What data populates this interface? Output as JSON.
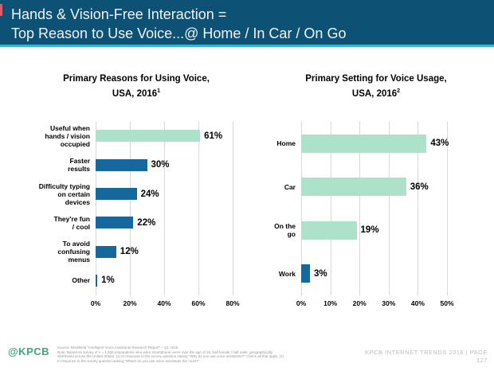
{
  "header": {
    "title_line1": "Hands & Vision-Free Interaction =",
    "title_line2": "Top Reason to Use Voice...@ Home / In Car / On Go"
  },
  "colors": {
    "header_bg": "#0d5174",
    "header_underline": "#36b6d3",
    "mint_bar": "#abe2c9",
    "blue_bar": "#16689c",
    "logo_green": "#3fa87a",
    "gridline": "#d9d9d9"
  },
  "chart_data": [
    {
      "type": "bar",
      "orientation": "horizontal",
      "title_line1": "Primary Reasons for Using Voice,",
      "title_line2": "USA, 2016",
      "title_sup": "1",
      "categories": [
        "Useful when\nhands / vision\noccupied",
        "Faster\nresults",
        "Difficulty typing\non certain\ndevices",
        "They're fun\n/ cool",
        "To avoid\nconfusing\nmenus",
        "Other"
      ],
      "values": [
        61,
        30,
        24,
        22,
        12,
        1
      ],
      "value_labels": [
        "61%",
        "30%",
        "24%",
        "22%",
        "12%",
        "1%"
      ],
      "bar_colors": [
        "#abe2c9",
        "#16689c",
        "#16689c",
        "#16689c",
        "#16689c",
        "#16689c"
      ],
      "xlim": [
        0,
        80
      ],
      "xtick_values": [
        0,
        20,
        40,
        60,
        80
      ],
      "xtick_labels": [
        "0%",
        "20%",
        "40%",
        "60%",
        "80%"
      ],
      "grid": true,
      "legend": "none",
      "layout": {
        "label_col_width": 86,
        "track_width": 172,
        "row_height": 36.3,
        "bar_thickness": 15
      }
    },
    {
      "type": "bar",
      "orientation": "horizontal",
      "title_line1": "Primary Setting for Voice Usage,",
      "title_line2": "USA, 2016",
      "title_sup": "2",
      "categories": [
        "Home",
        "Car",
        "On the go",
        "Work"
      ],
      "values": [
        43,
        36,
        19,
        3
      ],
      "value_labels": [
        "43%",
        "36%",
        "19%",
        "3%"
      ],
      "bar_colors": [
        "#abe2c9",
        "#abe2c9",
        "#abe2c9",
        "#16689c"
      ],
      "xlim": [
        0,
        50
      ],
      "xtick_values": [
        0,
        10,
        20,
        30,
        40,
        50
      ],
      "xtick_labels": [
        "0%",
        "10%",
        "20%",
        "30%",
        "40%",
        "50%"
      ],
      "grid": true,
      "legend": "none",
      "layout": {
        "label_col_width": 46,
        "track_width": 183,
        "row_height": 54.5,
        "bar_thickness": 23
      }
    }
  ],
  "footer": {
    "logo": "@KPCB",
    "source_line1": "Source: MindMeld \"Intelligent Voice Assistants Research Report\" – Q1 2016.",
    "source_line2": "Note: Based on survey of n = 1,800 respondents who were smartphone users over the age of 18, half female / half male, geographically distributed across the United States. (1) In response to the survey question stating \"Why do you use voice assistants?\" Check all that apply. (2) In response to the survey question asking \"Where do you use voice assistants the most?\"",
    "right_text": "KPCB INTERNET TRENDS 2016   |   PAGE",
    "page_number": "127"
  }
}
